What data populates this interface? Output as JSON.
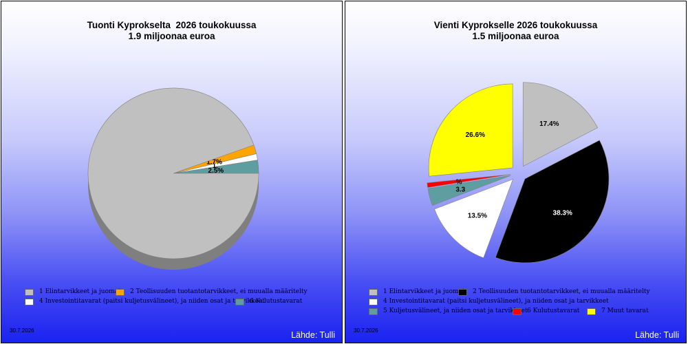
{
  "charts": [
    {
      "title_line1": "Tuonti Kyprokselta  2026 toukokuussa",
      "title_line2": "1.9 miljoonaa euroa",
      "date": "30.7.2026",
      "source": "Lähde: Tulli",
      "legend_rows": [
        [
          {
            "label": "1 Elintarvikkeet ja juomat",
            "color": "#c0c0c0"
          },
          {
            "label": "2 Teollisuuden tuotantotarvikkeet, ei muualla määritelty",
            "color": "#ffa500"
          }
        ],
        [
          {
            "label": "4 Investointitavarat (paitsi kuljetusvälineet), ja niiden osat ja tarvikkeet",
            "color": "#ffffff"
          },
          {
            "label": "6 Kulutustavarat",
            "color": "#5f9ea0"
          }
        ]
      ]
    },
    {
      "title_line1": "Vienti Kyprokselle 2026 toukokuussa",
      "title_line2": "1.5 miljoonaa euroa",
      "date": "30.7.2026",
      "source": "Lähde: Tulli",
      "legend_rows": [
        [
          {
            "label": "1 Elintarvikkeet ja juomat",
            "color": "#c0c0c0"
          },
          {
            "label": "2 Teollisuuden tuotantotarvikkeet, ei muualla määritelty",
            "color": "#000000"
          }
        ],
        [
          {
            "label": "4 Investointitavarat (paitsi kuljetusvälineet), ja niiden osat ja tarvikkeet",
            "color": "#ffffff"
          }
        ],
        [
          {
            "label": "5 Kuljetusvälineet, ja niiden osat ja tarvikkeet",
            "color": "#5f9ea0"
          },
          {
            "label": "6 Kulutustavarat",
            "color": "#ff0000"
          },
          {
            "label": "7 Muut tavarat",
            "color": "#ffff00"
          }
        ]
      ]
    }
  ],
  "chart_data": [
    {
      "type": "pie",
      "title": "Tuonti Kyprokselta  2026 toukokuussa 1.9 miljoonaa euroa",
      "slices": [
        {
          "name": "6 Kulutustavarat",
          "value": 2.5,
          "label": "2.5%",
          "color": "#5f9ea0"
        },
        {
          "name": "4 Investointitavarat (paitsi kuljetusvälineet), ja niiden osat ja tarvikkeet",
          "value": 1.2,
          "label": "1.",
          "color": "#ffffff"
        },
        {
          "name": "2 Teollisuuden tuotantotarvikkeet, ei muualla määritelty",
          "value": 1.7,
          "label": "1.7%",
          "color": "#ffa500"
        },
        {
          "name": "1 Elintarvikkeet ja juomat",
          "value": 94.6,
          "label": "",
          "color": "#c0c0c0"
        }
      ]
    },
    {
      "type": "pie",
      "title": "Vienti Kyprokselle 2026 toukokuussa 1.5 miljoonaa euroa",
      "slices": [
        {
          "name": "1 Elintarvikkeet ja juomat",
          "value": 17.4,
          "label": "17.4%",
          "color": "#c0c0c0"
        },
        {
          "name": "2 Teollisuuden tuotantotarvikkeet, ei muualla määritelty",
          "value": 38.3,
          "label": "38.3%",
          "color": "#000000"
        },
        {
          "name": "4 Investointitavarat (paitsi kuljetusvälineet), ja niiden osat ja tarvikkeet",
          "value": 13.5,
          "label": "13.5%",
          "color": "#ffffff"
        },
        {
          "name": "5 Kuljetusvälineet, ja niiden osat ja tarvikkeet",
          "value": 3.3,
          "label": "3.3",
          "color": "#5f9ea0"
        },
        {
          "name": "6 Kulutustavarat",
          "value": 0.9,
          "label": "%",
          "color": "#ff0000"
        },
        {
          "name": "7 Muut tavarat",
          "value": 26.6,
          "label": "26.6%",
          "color": "#ffff00"
        }
      ]
    }
  ]
}
